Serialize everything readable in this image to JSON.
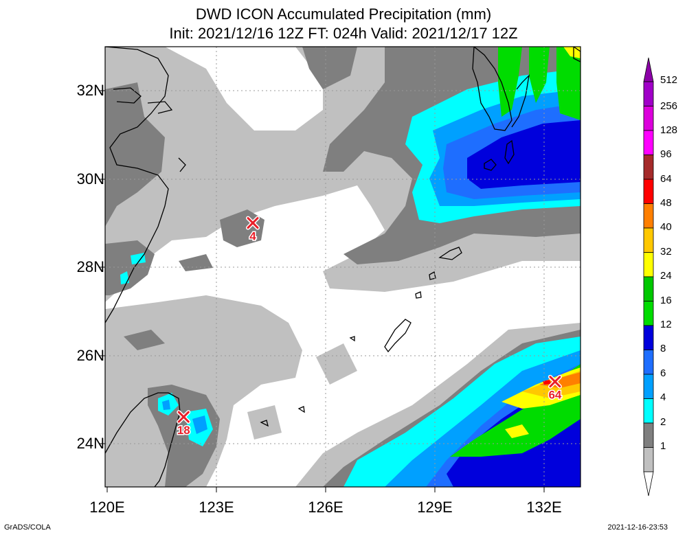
{
  "title_line1": "DWD ICON Accumulated Precipitation (mm)",
  "title_line2": "Init: 2021/12/16 12Z  FT: 024h  Valid: 2021/12/17 12Z",
  "lat_labels": [
    "32N",
    "30N",
    "28N",
    "26N",
    "24N"
  ],
  "lon_labels": [
    "120E",
    "123E",
    "126E",
    "129E",
    "132E"
  ],
  "colorbar": {
    "levels": [
      "512",
      "256",
      "128",
      "96",
      "64",
      "48",
      "40",
      "32",
      "24",
      "16",
      "12",
      "8",
      "6",
      "4",
      "2",
      "1"
    ],
    "colors": [
      "#8c00a8",
      "#a000c8",
      "#dc00dc",
      "#ff00ff",
      "#a52a2a",
      "#ff0000",
      "#ff7f00",
      "#ffc800",
      "#ffff00",
      "#00c800",
      "#00dc00",
      "#0000dc",
      "#1e6eff",
      "#00a0ff",
      "#00ffff",
      "#7f7f7f",
      "#c0c0c0",
      "#ffffff"
    ]
  },
  "markers": [
    {
      "label": "4",
      "lon": 124.0,
      "lat": 29.0
    },
    {
      "label": "18",
      "lon": 122.1,
      "lat": 24.6
    },
    {
      "label": "64",
      "lon": 132.3,
      "lat": 25.4
    }
  ],
  "footer_left": "GrADS/COLA",
  "footer_right": "2021-12-16-23:53"
}
